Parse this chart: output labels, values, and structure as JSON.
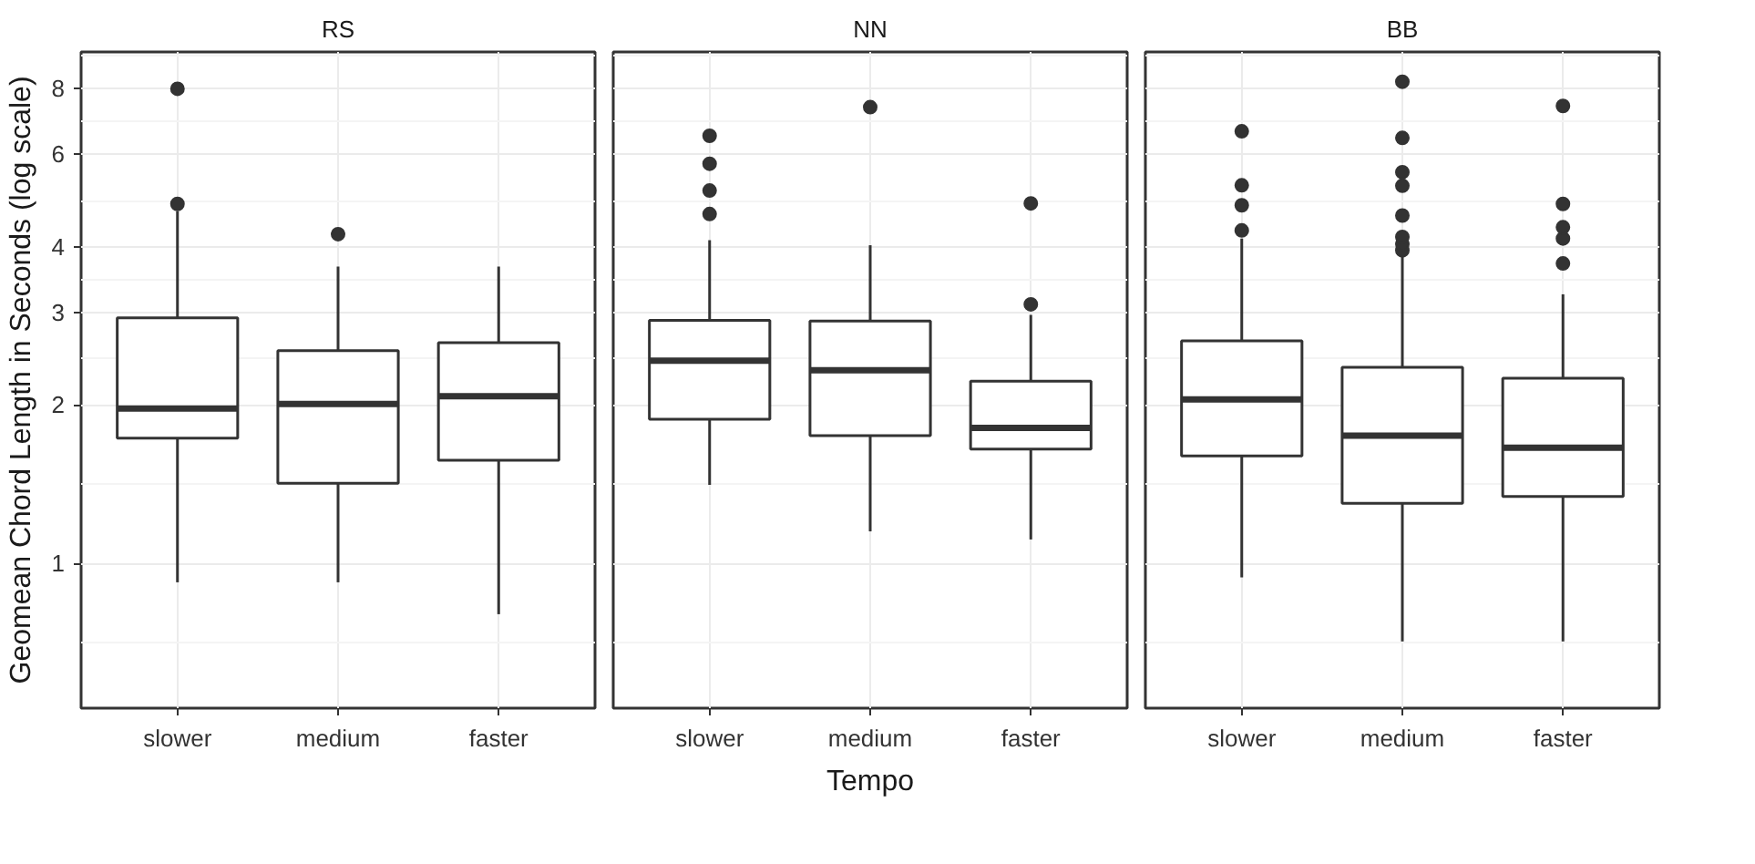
{
  "chart_data": [
    {
      "type": "box",
      "title": "RS",
      "ylabel": "Geomean Chord Length in Seconds (log scale)",
      "categories": [
        "slower",
        "medium",
        "faster"
      ],
      "log": true,
      "grid": true,
      "ylim": [
        0.53,
        9.4
      ],
      "yticks": [
        1,
        2,
        3,
        4,
        6,
        8
      ],
      "color": "#333333",
      "boxes": [
        {
          "low": 0.92,
          "q1": 1.73,
          "median": 1.97,
          "q3": 2.93,
          "high": 4.68,
          "outliers": [
            4.83,
            8.0
          ]
        },
        {
          "low": 0.92,
          "q1": 1.42,
          "median": 2.01,
          "q3": 2.54,
          "high": 3.67,
          "outliers": [
            4.23
          ]
        },
        {
          "low": 0.8,
          "q1": 1.57,
          "median": 2.08,
          "q3": 2.63,
          "high": 3.67
        }
      ]
    },
    {
      "type": "box",
      "title": "NN",
      "xlabel": "Tempo",
      "categories": [
        "slower",
        "medium",
        "faster"
      ],
      "log": true,
      "grid": true,
      "tick_labels": "x",
      "ylim": [
        0.53,
        9.4
      ],
      "yticks": [
        1,
        2,
        3,
        4,
        6,
        8
      ],
      "color": "#333333",
      "boxes": [
        {
          "low": 1.41,
          "q1": 1.88,
          "median": 2.43,
          "q3": 2.9,
          "high": 4.12,
          "outliers": [
            4.62,
            5.12,
            5.76,
            6.51
          ]
        },
        {
          "low": 1.15,
          "q1": 1.75,
          "median": 2.33,
          "q3": 2.89,
          "high": 4.03,
          "outliers": [
            7.38
          ]
        },
        {
          "low": 1.11,
          "q1": 1.65,
          "median": 1.81,
          "q3": 2.22,
          "high": 2.97,
          "outliers": [
            3.11,
            4.84
          ]
        }
      ]
    },
    {
      "type": "box",
      "title": "BB",
      "categories": [
        "slower",
        "medium",
        "faster"
      ],
      "log": true,
      "grid": true,
      "tick_labels": "x",
      "ylim": [
        0.53,
        9.4
      ],
      "yticks": [
        1,
        2,
        3,
        4,
        6,
        8
      ],
      "color": "#333333",
      "boxes": [
        {
          "low": 0.94,
          "q1": 1.6,
          "median": 2.05,
          "q3": 2.65,
          "high": 4.15,
          "outliers": [
            4.3,
            4.8,
            5.24,
            6.64
          ]
        },
        {
          "low": 0.71,
          "q1": 1.3,
          "median": 1.75,
          "q3": 2.36,
          "high": 3.9,
          "outliers": [
            3.94,
            4.05,
            4.18,
            4.59,
            5.23,
            5.55,
            6.45,
            8.25
          ]
        },
        {
          "low": 0.71,
          "q1": 1.34,
          "median": 1.66,
          "q3": 2.25,
          "high": 3.25,
          "outliers": [
            3.72,
            4.15,
            4.36,
            4.83,
            7.42
          ]
        }
      ]
    }
  ]
}
